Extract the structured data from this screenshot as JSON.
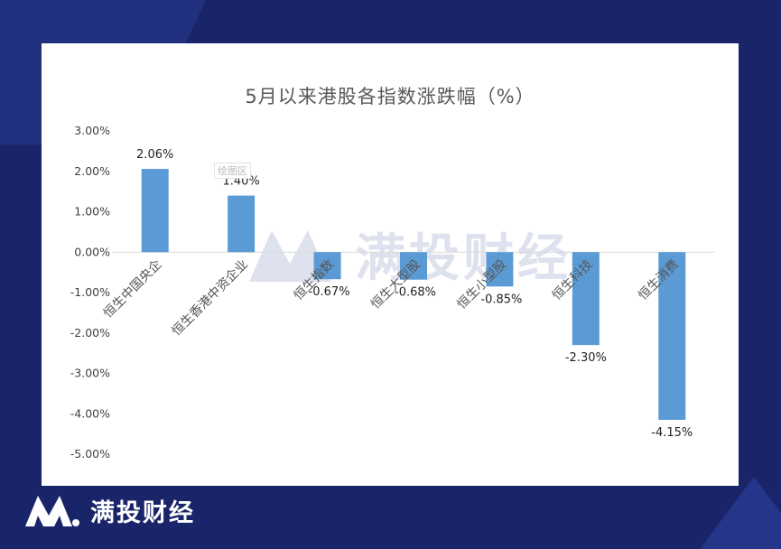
{
  "brand": {
    "name": "满投财经"
  },
  "watermark": {
    "text": "满投财经"
  },
  "plot_area_tag": "绘图区",
  "colors": {
    "background": "#1a2468",
    "bar": "#5b9bd5",
    "panel": "#ffffff"
  },
  "chart_data": {
    "type": "bar",
    "title": "5月以来港股各指数涨跌幅（%）",
    "categories": [
      "恒生中国央企",
      "恒生香港中资企业",
      "恒生指数",
      "恒生大型股",
      "恒生小型股",
      "恒生科技",
      "恒生消费"
    ],
    "values": [
      2.06,
      1.4,
      -0.67,
      -0.68,
      -0.85,
      -2.3,
      -4.15
    ],
    "data_labels": [
      "2.06%",
      "1.40%",
      "-0.67%",
      "-0.68%",
      "-0.85%",
      "-2.30%",
      "-4.15%"
    ],
    "y_ticks": [
      3,
      2,
      1,
      0,
      -1,
      -2,
      -3,
      -4,
      -5
    ],
    "y_tick_labels": [
      "3.00%",
      "2.00%",
      "1.00%",
      "0.00%",
      "-1.00%",
      "-2.00%",
      "-3.00%",
      "-4.00%",
      "-5.00%"
    ],
    "ylim": [
      -5,
      3
    ],
    "xlabel": "",
    "ylabel": "",
    "grid": false,
    "legend": "none"
  }
}
